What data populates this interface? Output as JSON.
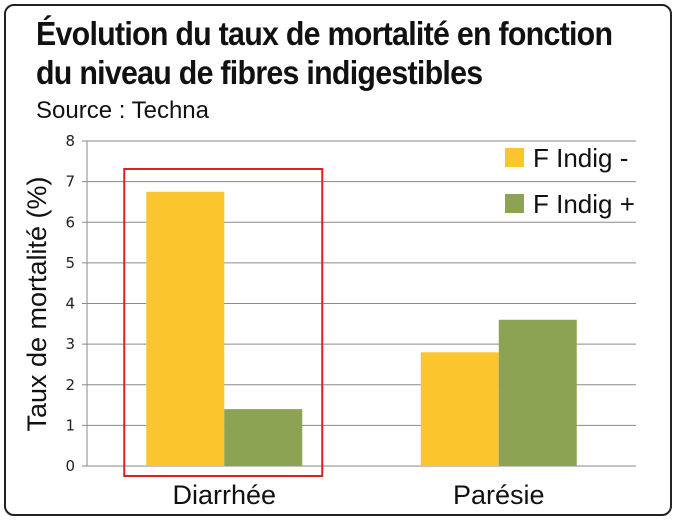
{
  "chart_data": {
    "type": "bar",
    "title": "Évolution du taux de mortalité en fonction du niveau de fibres indigestibles",
    "subtitle": "Source : Techna",
    "ylabel": "Taux de mortalité (%)",
    "xlabel": "",
    "categories": [
      "Diarrhée",
      "Parésie"
    ],
    "series": [
      {
        "name": "F Indig -",
        "values": [
          6.75,
          2.8
        ],
        "color": "#FBC52D"
      },
      {
        "name": "F Indig +",
        "values": [
          1.4,
          3.6
        ],
        "color": "#8BA352"
      }
    ],
    "ylim": [
      0,
      8
    ],
    "yticks": [
      "0",
      "1",
      "2",
      "3",
      "4",
      "5",
      "6",
      "7",
      "8"
    ],
    "grid": true,
    "legend": "top-right",
    "highlight": {
      "category": "Diarrhée",
      "color": "#E02020"
    }
  }
}
